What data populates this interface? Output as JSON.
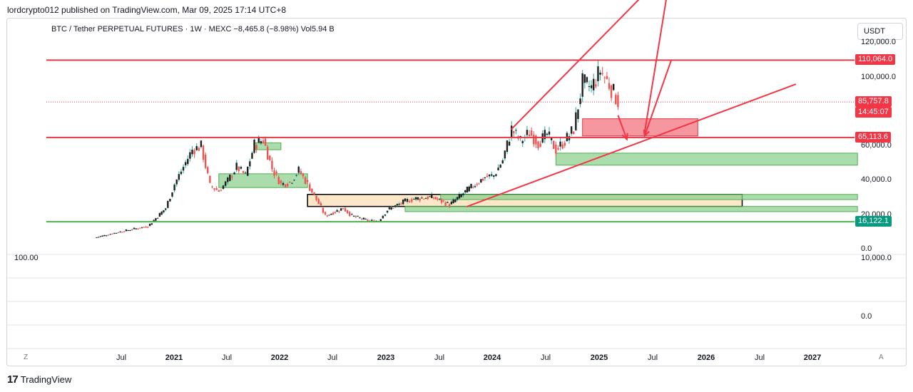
{
  "header": {
    "published_text": "lordcrypto012 published on TradingView.com, Mar 09, 2025 17:14 UTC+8"
  },
  "symbol_info": {
    "text": "BTC / Tether PERPETUAL FUTURES · 1W · MEXC  −8,465.8 (−8.98%)  Vol5.94 B"
  },
  "currency_button": {
    "label": "USDT"
  },
  "price_axis": {
    "labels": [
      "120,000.0",
      "100,000.0",
      "60,000.0",
      "40,000.0",
      "20,000.0",
      "0.0"
    ],
    "badges": [
      {
        "value": "110,064.0",
        "color": "#f23645"
      },
      {
        "value": "85,757.8",
        "color": "#f23645"
      },
      {
        "value": "14:45:07",
        "color": "#f23645"
      },
      {
        "value": "65,113.6",
        "color": "#f23645"
      },
      {
        "value": "16,122.1",
        "color": "#089981"
      }
    ]
  },
  "indicator_panel": {
    "left_label": "100.00",
    "right_top_label": "10,000.0",
    "right_bottom_label": "0.0"
  },
  "time_axis": {
    "labels": [
      "Jul",
      "2021",
      "Jul",
      "2022",
      "Jul",
      "2023",
      "Jul",
      "2024",
      "Jul",
      "2025",
      "Jul",
      "2026",
      "Jul",
      "2027"
    ],
    "year_flags": [
      false,
      true,
      false,
      true,
      false,
      true,
      false,
      true,
      false,
      true,
      false,
      true,
      false,
      true
    ]
  },
  "corner_buttons": {
    "left": "Z",
    "right": "A"
  },
  "footer": {
    "brand": "TradingView",
    "logo": "tv-logo"
  },
  "colors": {
    "up": "#26a69a",
    "down": "#ef5350",
    "resistance": "#e53946",
    "support": "#4caf50",
    "supply_zone": "#f47c87",
    "demand_zone": "#8fd08f",
    "range_box": "#fce8c8"
  },
  "chart_data": {
    "type": "candlestick",
    "title": "BTC / Tether PERPETUAL FUTURES · 1W · MEXC",
    "timeframe": "1W",
    "ylim": [
      0,
      125000
    ],
    "x_range": [
      "2020-03",
      "2027-06"
    ],
    "weekly_close_path": [
      [
        "2020-04",
        6800
      ],
      [
        "2020-06",
        9300
      ],
      [
        "2020-08",
        11500
      ],
      [
        "2020-10",
        13500
      ],
      [
        "2020-12",
        24000
      ],
      [
        "2021-01",
        38000
      ],
      [
        "2021-02",
        48000
      ],
      [
        "2021-03",
        58000
      ],
      [
        "2021-04",
        60000
      ],
      [
        "2021-05",
        37000
      ],
      [
        "2021-06",
        34000
      ],
      [
        "2021-07",
        40000
      ],
      [
        "2021-08",
        48000
      ],
      [
        "2021-09",
        43000
      ],
      [
        "2021-10",
        61000
      ],
      [
        "2021-11",
        64000
      ],
      [
        "2021-12",
        47000
      ],
      [
        "2022-01",
        38000
      ],
      [
        "2022-02",
        39000
      ],
      [
        "2022-03",
        46000
      ],
      [
        "2022-04",
        38000
      ],
      [
        "2022-05",
        29000
      ],
      [
        "2022-06",
        19500
      ],
      [
        "2022-08",
        24000
      ],
      [
        "2022-09",
        19500
      ],
      [
        "2022-11",
        16500
      ],
      [
        "2022-12",
        16800
      ],
      [
        "2023-01",
        23000
      ],
      [
        "2023-03",
        28000
      ],
      [
        "2023-04",
        29500
      ],
      [
        "2023-06",
        30500
      ],
      [
        "2023-08",
        26000
      ],
      [
        "2023-10",
        34500
      ],
      [
        "2023-12",
        42000
      ],
      [
        "2024-01",
        43000
      ],
      [
        "2024-02",
        52000
      ],
      [
        "2024-03",
        70000
      ],
      [
        "2024-04",
        63000
      ],
      [
        "2024-05",
        68000
      ],
      [
        "2024-06",
        62000
      ],
      [
        "2024-07",
        67000
      ],
      [
        "2024-08",
        58000
      ],
      [
        "2024-09",
        63000
      ],
      [
        "2024-10",
        70000
      ],
      [
        "2024-11",
        97000
      ],
      [
        "2024-12",
        94000
      ],
      [
        "2025-01",
        104000
      ],
      [
        "2025-02",
        96000
      ],
      [
        "2025-03",
        86000
      ]
    ],
    "horizontal_levels": [
      {
        "label": "resistance",
        "value": 110064.0
      },
      {
        "label": "current price",
        "value": 85757.8
      },
      {
        "label": "support",
        "value": 65113.6
      },
      {
        "label": "support",
        "value": 16122.1
      }
    ],
    "zones": [
      {
        "kind": "supply",
        "from": "2024-11",
        "to": "2025-12",
        "low": 66000,
        "high": 76000
      },
      {
        "kind": "demand",
        "from": "2024-08",
        "to": "2027-06",
        "low": 49000,
        "high": 56000
      },
      {
        "kind": "demand",
        "from": "2021-06",
        "to": "2022-04",
        "low": 36000,
        "high": 44000
      },
      {
        "kind": "demand",
        "from": "2021-10",
        "to": "2022-01",
        "low": 58000,
        "high": 62000
      },
      {
        "kind": "range",
        "from": "2022-04",
        "to": "2026-05",
        "low": 25000,
        "high": 32000
      },
      {
        "kind": "demand",
        "from": "2023-07",
        "to": "2027-06",
        "low": 29000,
        "high": 32000
      },
      {
        "kind": "demand",
        "from": "2023-03",
        "to": "2027-06",
        "low": 22000,
        "high": 25000
      }
    ],
    "trendlines": [
      {
        "from": [
          "2023-10",
          25000
        ],
        "to": [
          "2026-11",
          96000
        ]
      },
      {
        "from": [
          "2024-03",
          70000
        ],
        "to": [
          "2025-11",
          175000
        ]
      },
      {
        "from": [
          "2025-06",
          68000
        ],
        "to": [
          "2025-10",
          195000
        ]
      }
    ],
    "forecast_arrows": [
      {
        "from": [
          "2025-03",
          78000
        ],
        "to": [
          "2025-04",
          64000
        ]
      },
      {
        "from": [
          "2025-09",
          110000
        ],
        "to": [
          "2025-06",
          66000
        ]
      }
    ],
    "time_ticks": [
      "Jul",
      "2021",
      "Jul",
      "2022",
      "Jul",
      "2023",
      "Jul",
      "2024",
      "Jul",
      "2025",
      "Jul",
      "2026",
      "Jul",
      "2027"
    ]
  }
}
